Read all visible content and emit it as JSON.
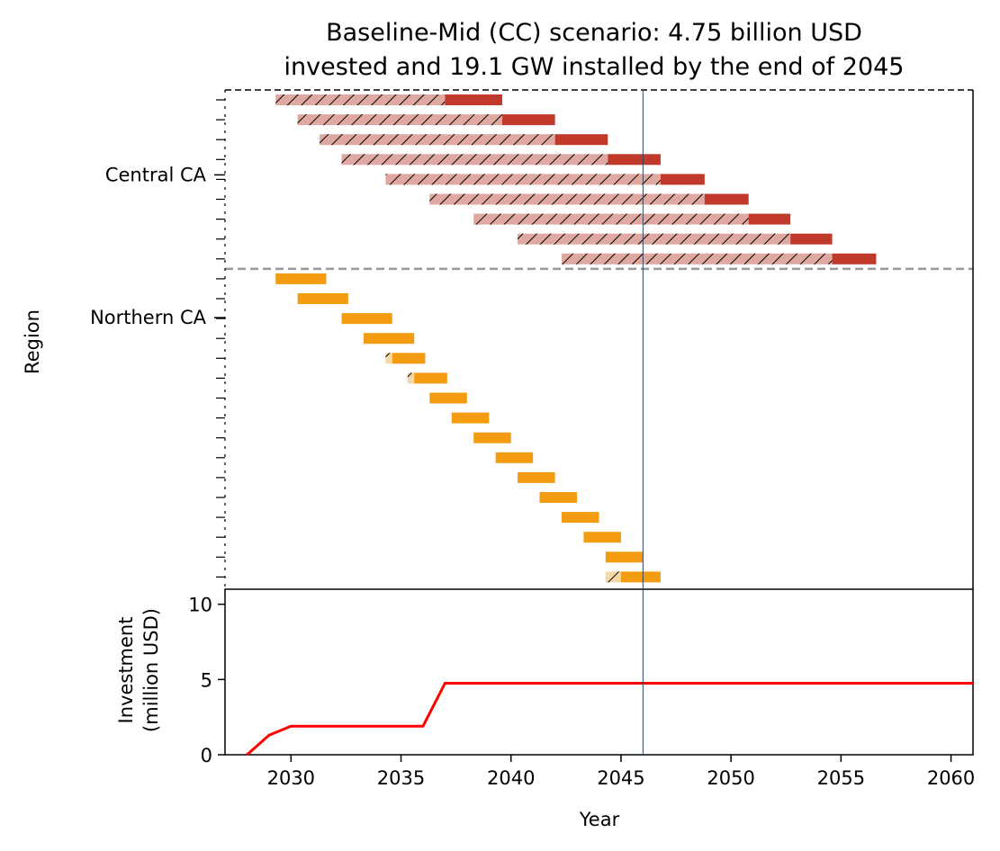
{
  "chart_data": [
    {
      "type": "gantt",
      "title_line1": "Baseline-Mid (CC) scenario: 4.75 billion USD",
      "title_line2": "invested and 19.1 GW installed by the end of 2045",
      "ylabel": "Region",
      "y_tick_labels": [
        "Central CA",
        "Northern CA"
      ],
      "xlim": [
        2027,
        2061
      ],
      "vline_x": 2046,
      "colors": {
        "central_build": "#dfa9a2",
        "central_operate": "#c0392b",
        "northern_build": "#f5d7a8",
        "northern_operate": "#f39c12",
        "separator": "#999999",
        "vline": "#34495e"
      },
      "regions": [
        {
          "name": "Central CA",
          "projects": [
            {
              "build": [
                2029.3,
                2037.0
              ],
              "operate": [
                2037.0,
                2039.6
              ]
            },
            {
              "build": [
                2030.3,
                2039.6
              ],
              "operate": [
                2039.6,
                2042.0
              ]
            },
            {
              "build": [
                2031.3,
                2042.0
              ],
              "operate": [
                2042.0,
                2044.4
              ]
            },
            {
              "build": [
                2032.3,
                2044.4
              ],
              "operate": [
                2044.4,
                2046.8
              ]
            },
            {
              "build": [
                2034.3,
                2046.8
              ],
              "operate": [
                2046.8,
                2048.8
              ]
            },
            {
              "build": [
                2036.3,
                2048.8
              ],
              "operate": [
                2048.8,
                2050.8
              ]
            },
            {
              "build": [
                2038.3,
                2050.8
              ],
              "operate": [
                2050.8,
                2052.7
              ]
            },
            {
              "build": [
                2040.3,
                2052.7
              ],
              "operate": [
                2052.7,
                2054.6
              ]
            },
            {
              "build": [
                2042.3,
                2054.6
              ],
              "operate": [
                2054.6,
                2056.6
              ]
            }
          ]
        },
        {
          "name": "Northern CA",
          "projects": [
            {
              "operate": [
                2029.3,
                2031.6
              ]
            },
            {
              "operate": [
                2030.3,
                2032.6
              ]
            },
            {
              "operate": [
                2032.3,
                2034.6
              ]
            },
            {
              "operate": [
                2033.3,
                2035.6
              ]
            },
            {
              "build": [
                2034.3,
                2034.6
              ],
              "operate": [
                2034.6,
                2036.1
              ]
            },
            {
              "build": [
                2035.3,
                2035.6
              ],
              "operate": [
                2035.6,
                2037.1
              ]
            },
            {
              "operate": [
                2036.3,
                2038.0
              ]
            },
            {
              "operate": [
                2037.3,
                2039.0
              ]
            },
            {
              "operate": [
                2038.3,
                2040.0
              ]
            },
            {
              "operate": [
                2039.3,
                2041.0
              ]
            },
            {
              "operate": [
                2040.3,
                2042.0
              ]
            },
            {
              "operate": [
                2041.3,
                2043.0
              ]
            },
            {
              "operate": [
                2042.3,
                2044.0
              ]
            },
            {
              "operate": [
                2043.3,
                2045.0
              ]
            },
            {
              "operate": [
                2044.3,
                2046.0
              ]
            },
            {
              "build": [
                2044.3,
                2045.0
              ],
              "operate": [
                2045.0,
                2046.8
              ]
            }
          ]
        }
      ]
    },
    {
      "type": "line",
      "xlabel": "Year",
      "ylabel_line1": "Investment",
      "ylabel_line2": "(million USD)",
      "xlim": [
        2027,
        2061
      ],
      "ylim": [
        0,
        11
      ],
      "x_ticks": [
        2030,
        2035,
        2040,
        2045,
        2050,
        2055,
        2060
      ],
      "y_ticks": [
        0,
        5,
        10
      ],
      "line_color": "#ff0000",
      "x": [
        2028.0,
        2029.0,
        2030.0,
        2031.0,
        2032.0,
        2033.0,
        2034.0,
        2035.0,
        2036.0,
        2037.0,
        2040.0,
        2045.0,
        2050.0,
        2055.0,
        2060.0,
        2061.0
      ],
      "y": [
        0.0,
        1.3,
        1.9,
        1.9,
        1.9,
        1.9,
        1.9,
        1.9,
        1.9,
        4.75,
        4.75,
        4.75,
        4.75,
        4.75,
        4.75,
        4.75
      ]
    }
  ]
}
